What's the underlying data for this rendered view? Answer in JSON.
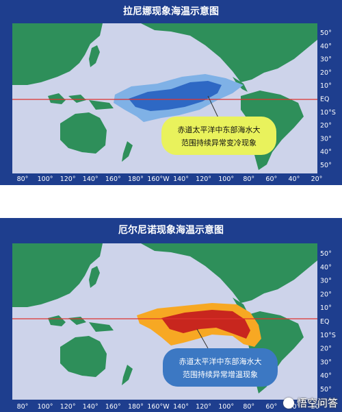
{
  "maps": [
    {
      "title": "拉尼娜现象海温示意图",
      "callout": [
        "赤道太平洋中东部海水大",
        "范围持续异常变冷现象"
      ],
      "anomaly_color_outer": "#7FB1E6",
      "anomaly_color_inner": "#2E68C4",
      "callout_color": "#E9F25C"
    },
    {
      "title": "厄尔尼诺现象海温示意图",
      "callout": [
        "赤道太平洋中东部海水大",
        "范围持续异常增温现象"
      ],
      "anomaly_color_outer": "#F7A823",
      "anomaly_color_inner": "#C8261E",
      "callout_color": "#3C78C3"
    }
  ],
  "x_ticks": [
    "80°",
    "100°",
    "120°",
    "140°",
    "160°",
    "180°",
    "160°W",
    "140°",
    "120°",
    "100°",
    "80°",
    "60°",
    "40°",
    "20°"
  ],
  "y_ticks": [
    "50°",
    "40°",
    "30°",
    "20°",
    "10°",
    "EQ",
    "10°S",
    "20°",
    "30°",
    "40°",
    "50°"
  ],
  "colors": {
    "frame": "#1E3E8E",
    "ocean": "#CDD3EA",
    "land": "#2E8F5A",
    "equator": "#E0312D"
  },
  "watermark": "悟空问答"
}
